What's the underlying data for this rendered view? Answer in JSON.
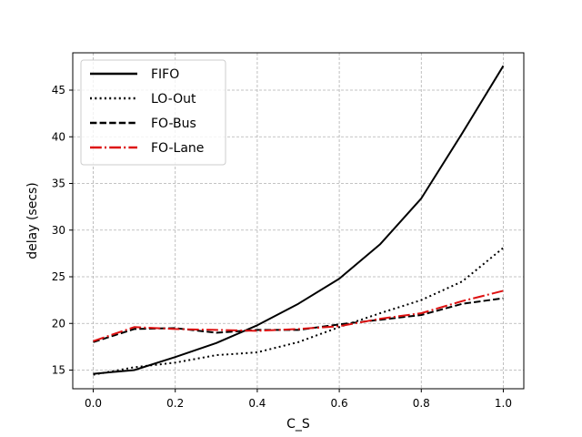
{
  "chart_data": {
    "type": "line",
    "title": "",
    "xlabel": "C_S",
    "ylabel": "delay (secs)",
    "xlim": [
      -0.05,
      1.05
    ],
    "ylim": [
      13,
      49
    ],
    "xticks": [
      0.0,
      0.2,
      0.4,
      0.6,
      0.8,
      1.0
    ],
    "xtick_labels": [
      "0.0",
      "0.2",
      "0.4",
      "0.6",
      "0.8",
      "1.0"
    ],
    "yticks": [
      15,
      20,
      25,
      30,
      35,
      40,
      45
    ],
    "ytick_labels": [
      "15",
      "20",
      "25",
      "30",
      "35",
      "40",
      "45"
    ],
    "grid": true,
    "legend_position": "top-left",
    "x": [
      0.0,
      0.1,
      0.2,
      0.3,
      0.4,
      0.5,
      0.6,
      0.7,
      0.8,
      0.9,
      1.0
    ],
    "series": [
      {
        "name": "FIFO",
        "color": "#000000",
        "style": "solid",
        "values": [
          14.6,
          15.0,
          16.4,
          17.9,
          19.8,
          22.1,
          24.8,
          28.5,
          33.4,
          40.4,
          47.6
        ]
      },
      {
        "name": "LO-Out",
        "color": "#000000",
        "style": "dotted",
        "values": [
          14.5,
          15.3,
          15.8,
          16.6,
          16.9,
          18.0,
          19.6,
          21.1,
          22.5,
          24.5,
          28.1
        ]
      },
      {
        "name": "FO-Bus",
        "color": "#000000",
        "style": "dashed",
        "values": [
          18.0,
          19.4,
          19.5,
          19.0,
          19.3,
          19.3,
          19.9,
          20.4,
          20.9,
          22.1,
          22.7
        ]
      },
      {
        "name": "FO-Lane",
        "color": "#dd1111",
        "style": "dashdot",
        "values": [
          18.1,
          19.6,
          19.4,
          19.3,
          19.2,
          19.4,
          19.7,
          20.5,
          21.1,
          22.4,
          23.5
        ]
      }
    ]
  }
}
